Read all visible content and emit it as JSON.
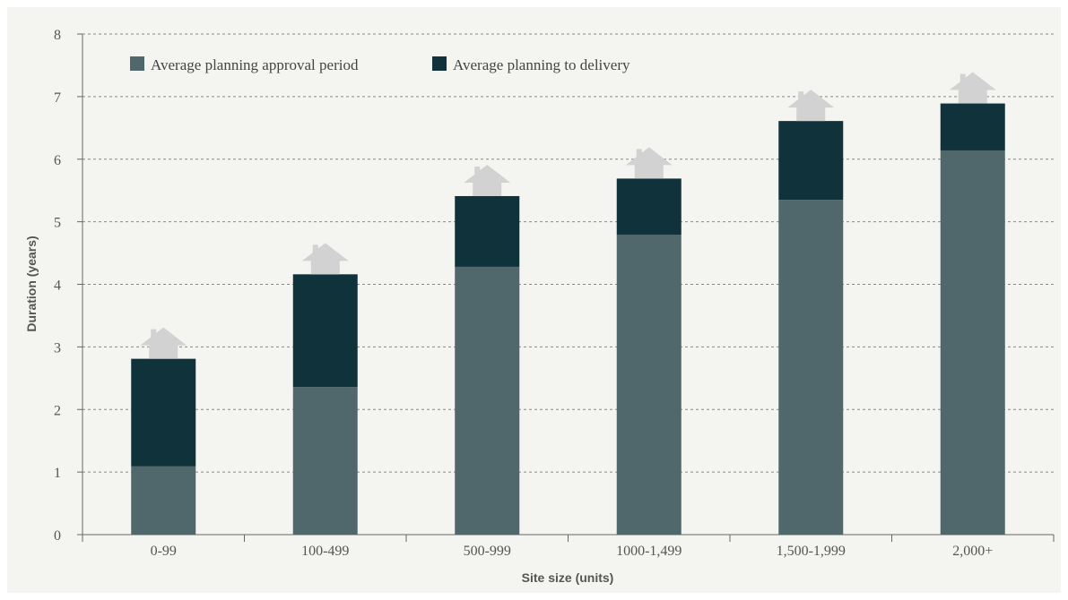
{
  "chart_data": {
    "type": "bar",
    "stacked": true,
    "title": "",
    "xlabel": "Site size (units)",
    "ylabel": "Duration (years)",
    "ylim": [
      0,
      8
    ],
    "yticks": [
      0,
      1,
      2,
      3,
      4,
      5,
      6,
      7,
      8
    ],
    "grid": true,
    "legend_position": "top-left",
    "categories": [
      "0-99",
      "100-499",
      "500-999",
      "1000-1,499",
      "1,500-1,999",
      "2,000+"
    ],
    "series": [
      {
        "name": "Average planning approval period",
        "color": "#50686c",
        "values": [
          1.09,
          2.36,
          4.28,
          4.79,
          5.35,
          6.14
        ]
      },
      {
        "name": "Average planning to delivery",
        "color": "#10323a",
        "values": [
          1.72,
          1.8,
          1.13,
          0.9,
          1.26,
          0.75
        ]
      }
    ],
    "house_icon": "house-icon",
    "house_color": "#d2d2d2"
  }
}
